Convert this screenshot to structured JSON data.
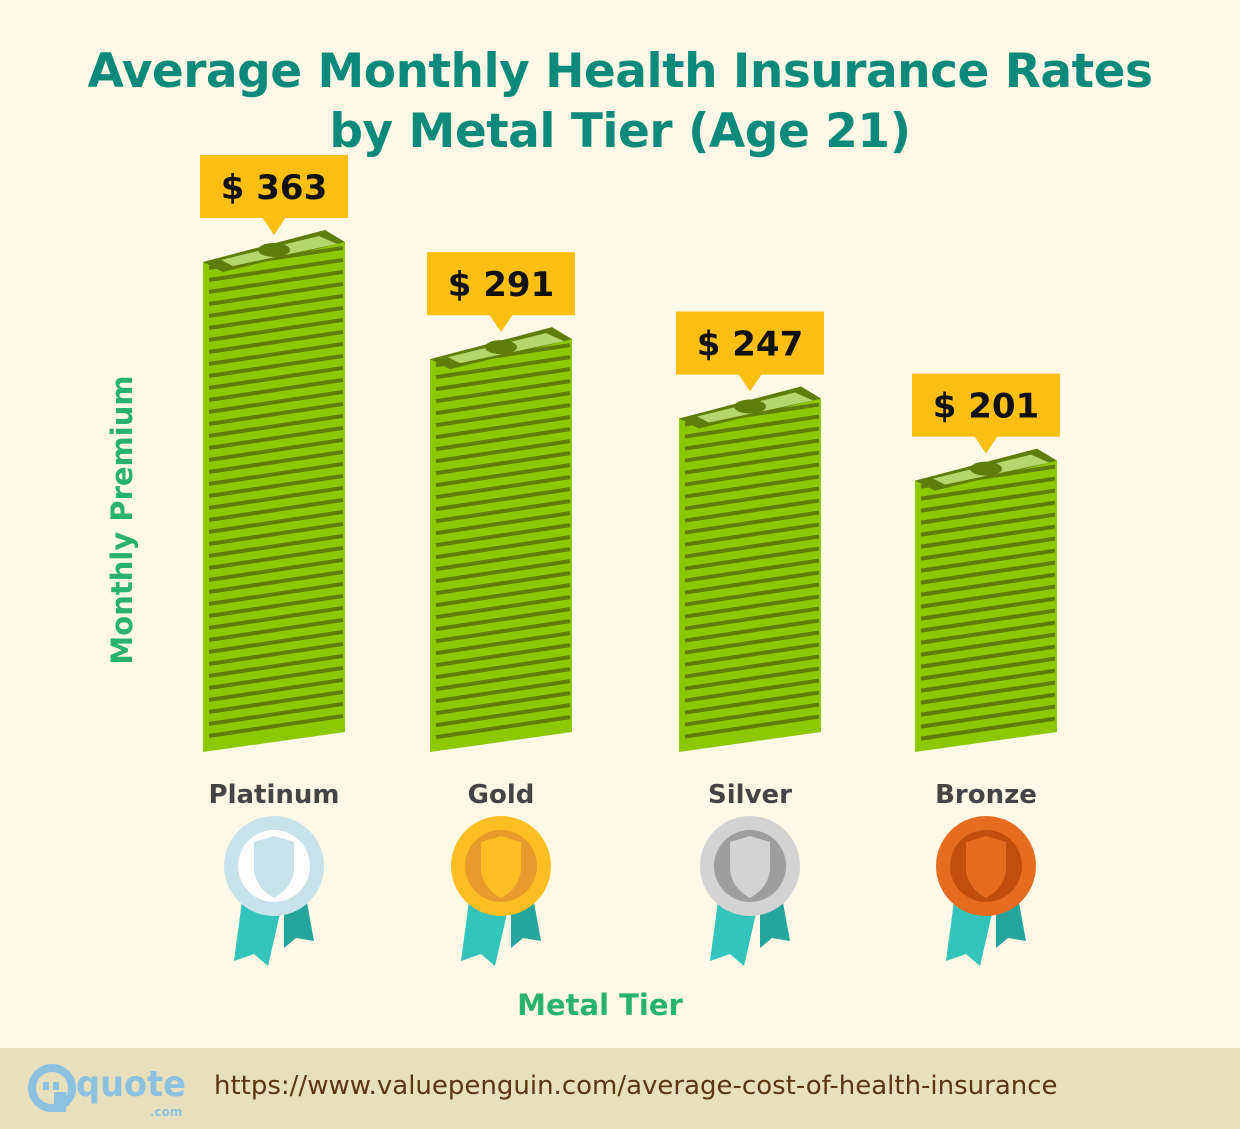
{
  "chart_data": {
    "type": "bar",
    "title": "Average Monthly Health Insurance Rates by Metal Tier (Age 21)",
    "title_lines": [
      "Average Monthly Health Insurance Rates",
      "by Metal Tier (Age 21)"
    ],
    "xlabel": "Metal Tier",
    "ylabel": "Monthly Premium",
    "categories": [
      "Platinum",
      "Gold",
      "Silver",
      "Bronze"
    ],
    "values": [
      363,
      291,
      247,
      201
    ],
    "data_labels": [
      "$ 363",
      "$ 291",
      "$ 247",
      "$ 201"
    ],
    "grid": false,
    "legend": "none",
    "bar_style": "stacks of money",
    "medal_icons": [
      "platinum-medal",
      "gold-medal",
      "silver-medal",
      "bronze-medal"
    ]
  },
  "colors": {
    "title": "#0e8a7c",
    "axis_label": "#27b36b",
    "label_box": "#fbbf12",
    "money_front": "#8cc800",
    "money_stripe": "#5e7d0a",
    "background": "#fef9e6",
    "footer": "#e8e0bd"
  },
  "footer": {
    "logo_text": "quote",
    "logo_suffix": ".com",
    "url": "https://www.valuepenguin.com/average-cost-of-health-insurance"
  }
}
